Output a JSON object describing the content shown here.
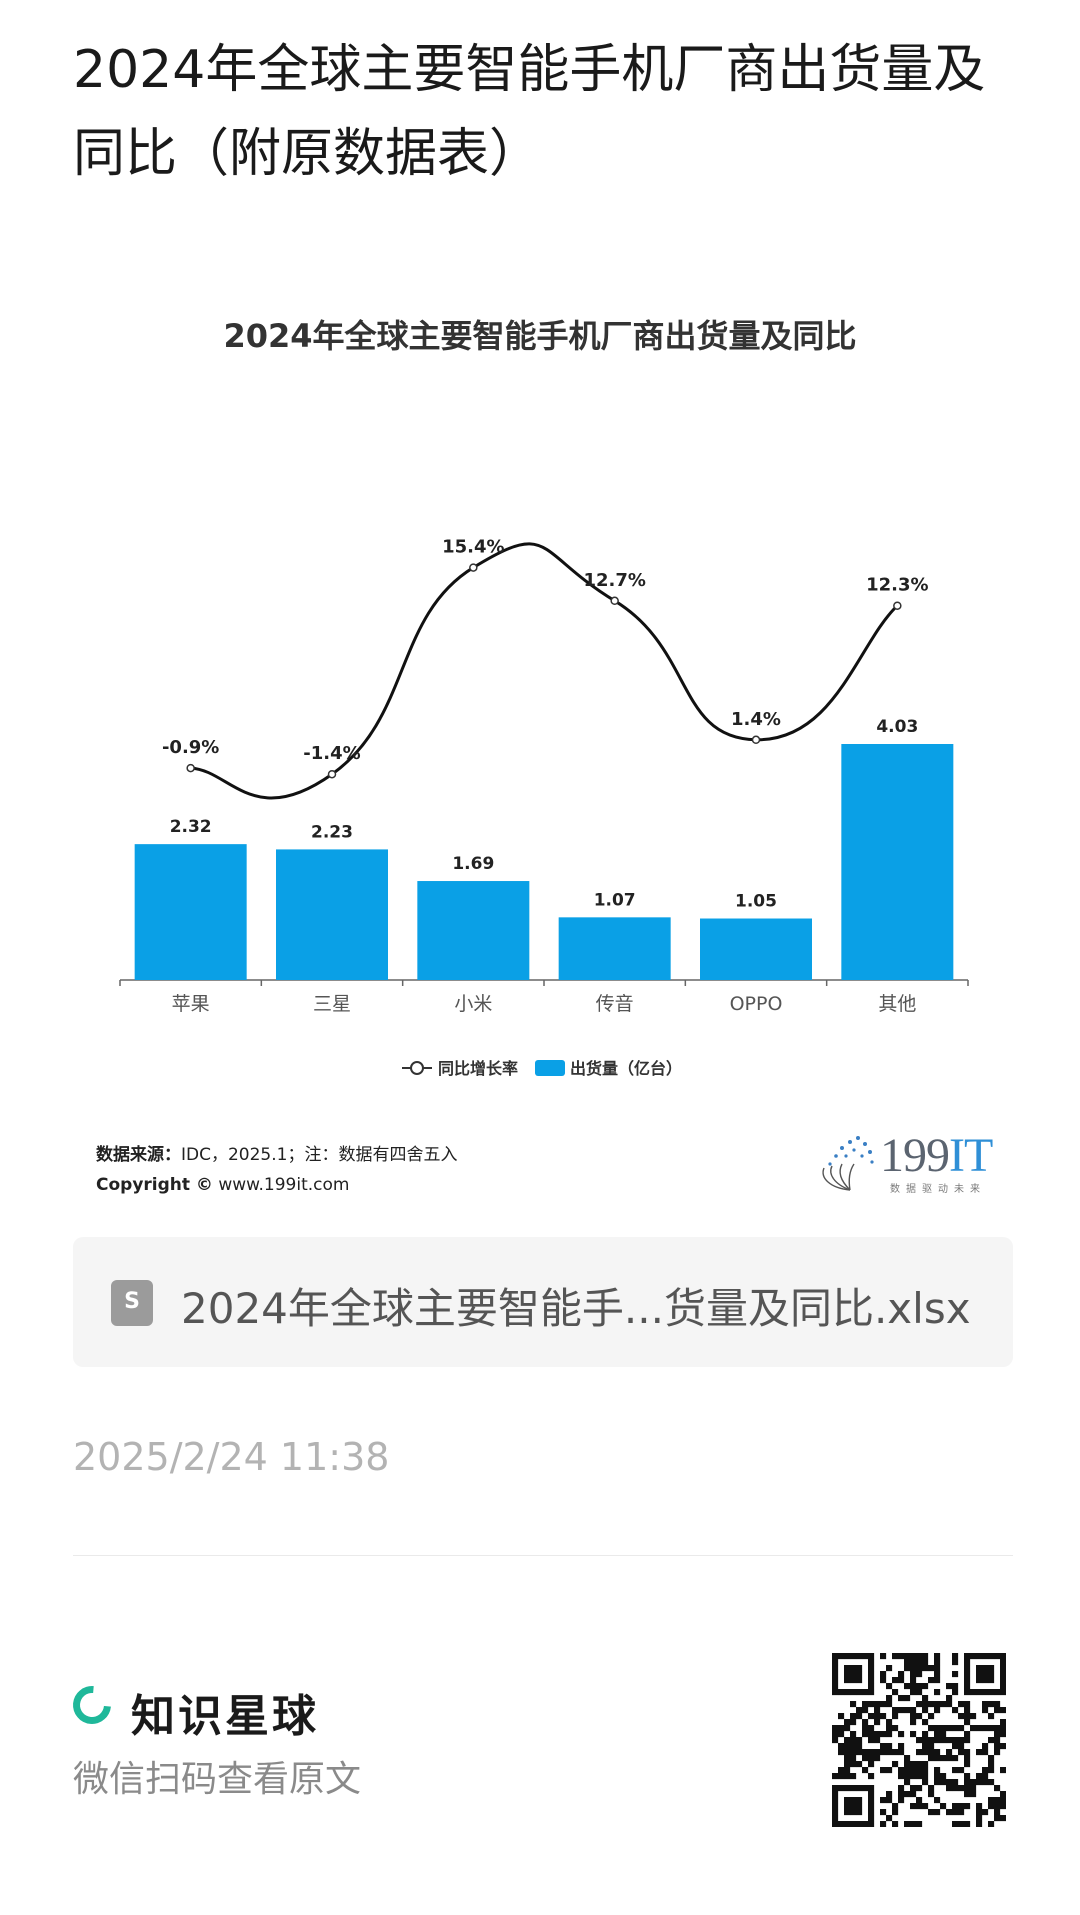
{
  "post": {
    "title": "2024年全球主要智能手机厂商出货量及同比（附原数据表）",
    "time": "2025/2/24 11:38"
  },
  "chart_data": {
    "type": "bar",
    "title": "2024年全球主要智能手机厂商出货量及同比",
    "categories": [
      "苹果",
      "三星",
      "小米",
      "传音",
      "OPPO",
      "其他"
    ],
    "series": [
      {
        "name": "出货量（亿台）",
        "type": "bar",
        "values": [
          2.32,
          2.23,
          1.69,
          1.07,
          1.05,
          4.03
        ],
        "labels": [
          "2.32",
          "2.23",
          "1.69",
          "1.07",
          "1.05",
          "4.03"
        ],
        "color": "#0aa0e6"
      },
      {
        "name": "同比增长率",
        "type": "line",
        "values": [
          -0.9,
          -1.4,
          15.4,
          12.7,
          1.4,
          12.3
        ],
        "labels": [
          "-0.9%",
          "-1.4%",
          "15.4%",
          "12.7%",
          "1.4%",
          "12.3%"
        ],
        "color": "#111111"
      }
    ],
    "legend_position": "bottom",
    "grid": false
  },
  "source": {
    "label": "数据来源：",
    "text": "IDC，2025.1；注：数据有四舍五入",
    "copyright_label": "Copyright ©",
    "copyright_text": "www.199it.com"
  },
  "logo": {
    "number": "199",
    "suffix": "IT",
    "tagline": "数据驱动未来"
  },
  "attachment": {
    "name": "2024年全球主要智能手...货量及同比.xlsx",
    "icon_letter": "S"
  },
  "footer": {
    "brand": "知识星球",
    "subtitle": "微信扫码查看原文"
  }
}
